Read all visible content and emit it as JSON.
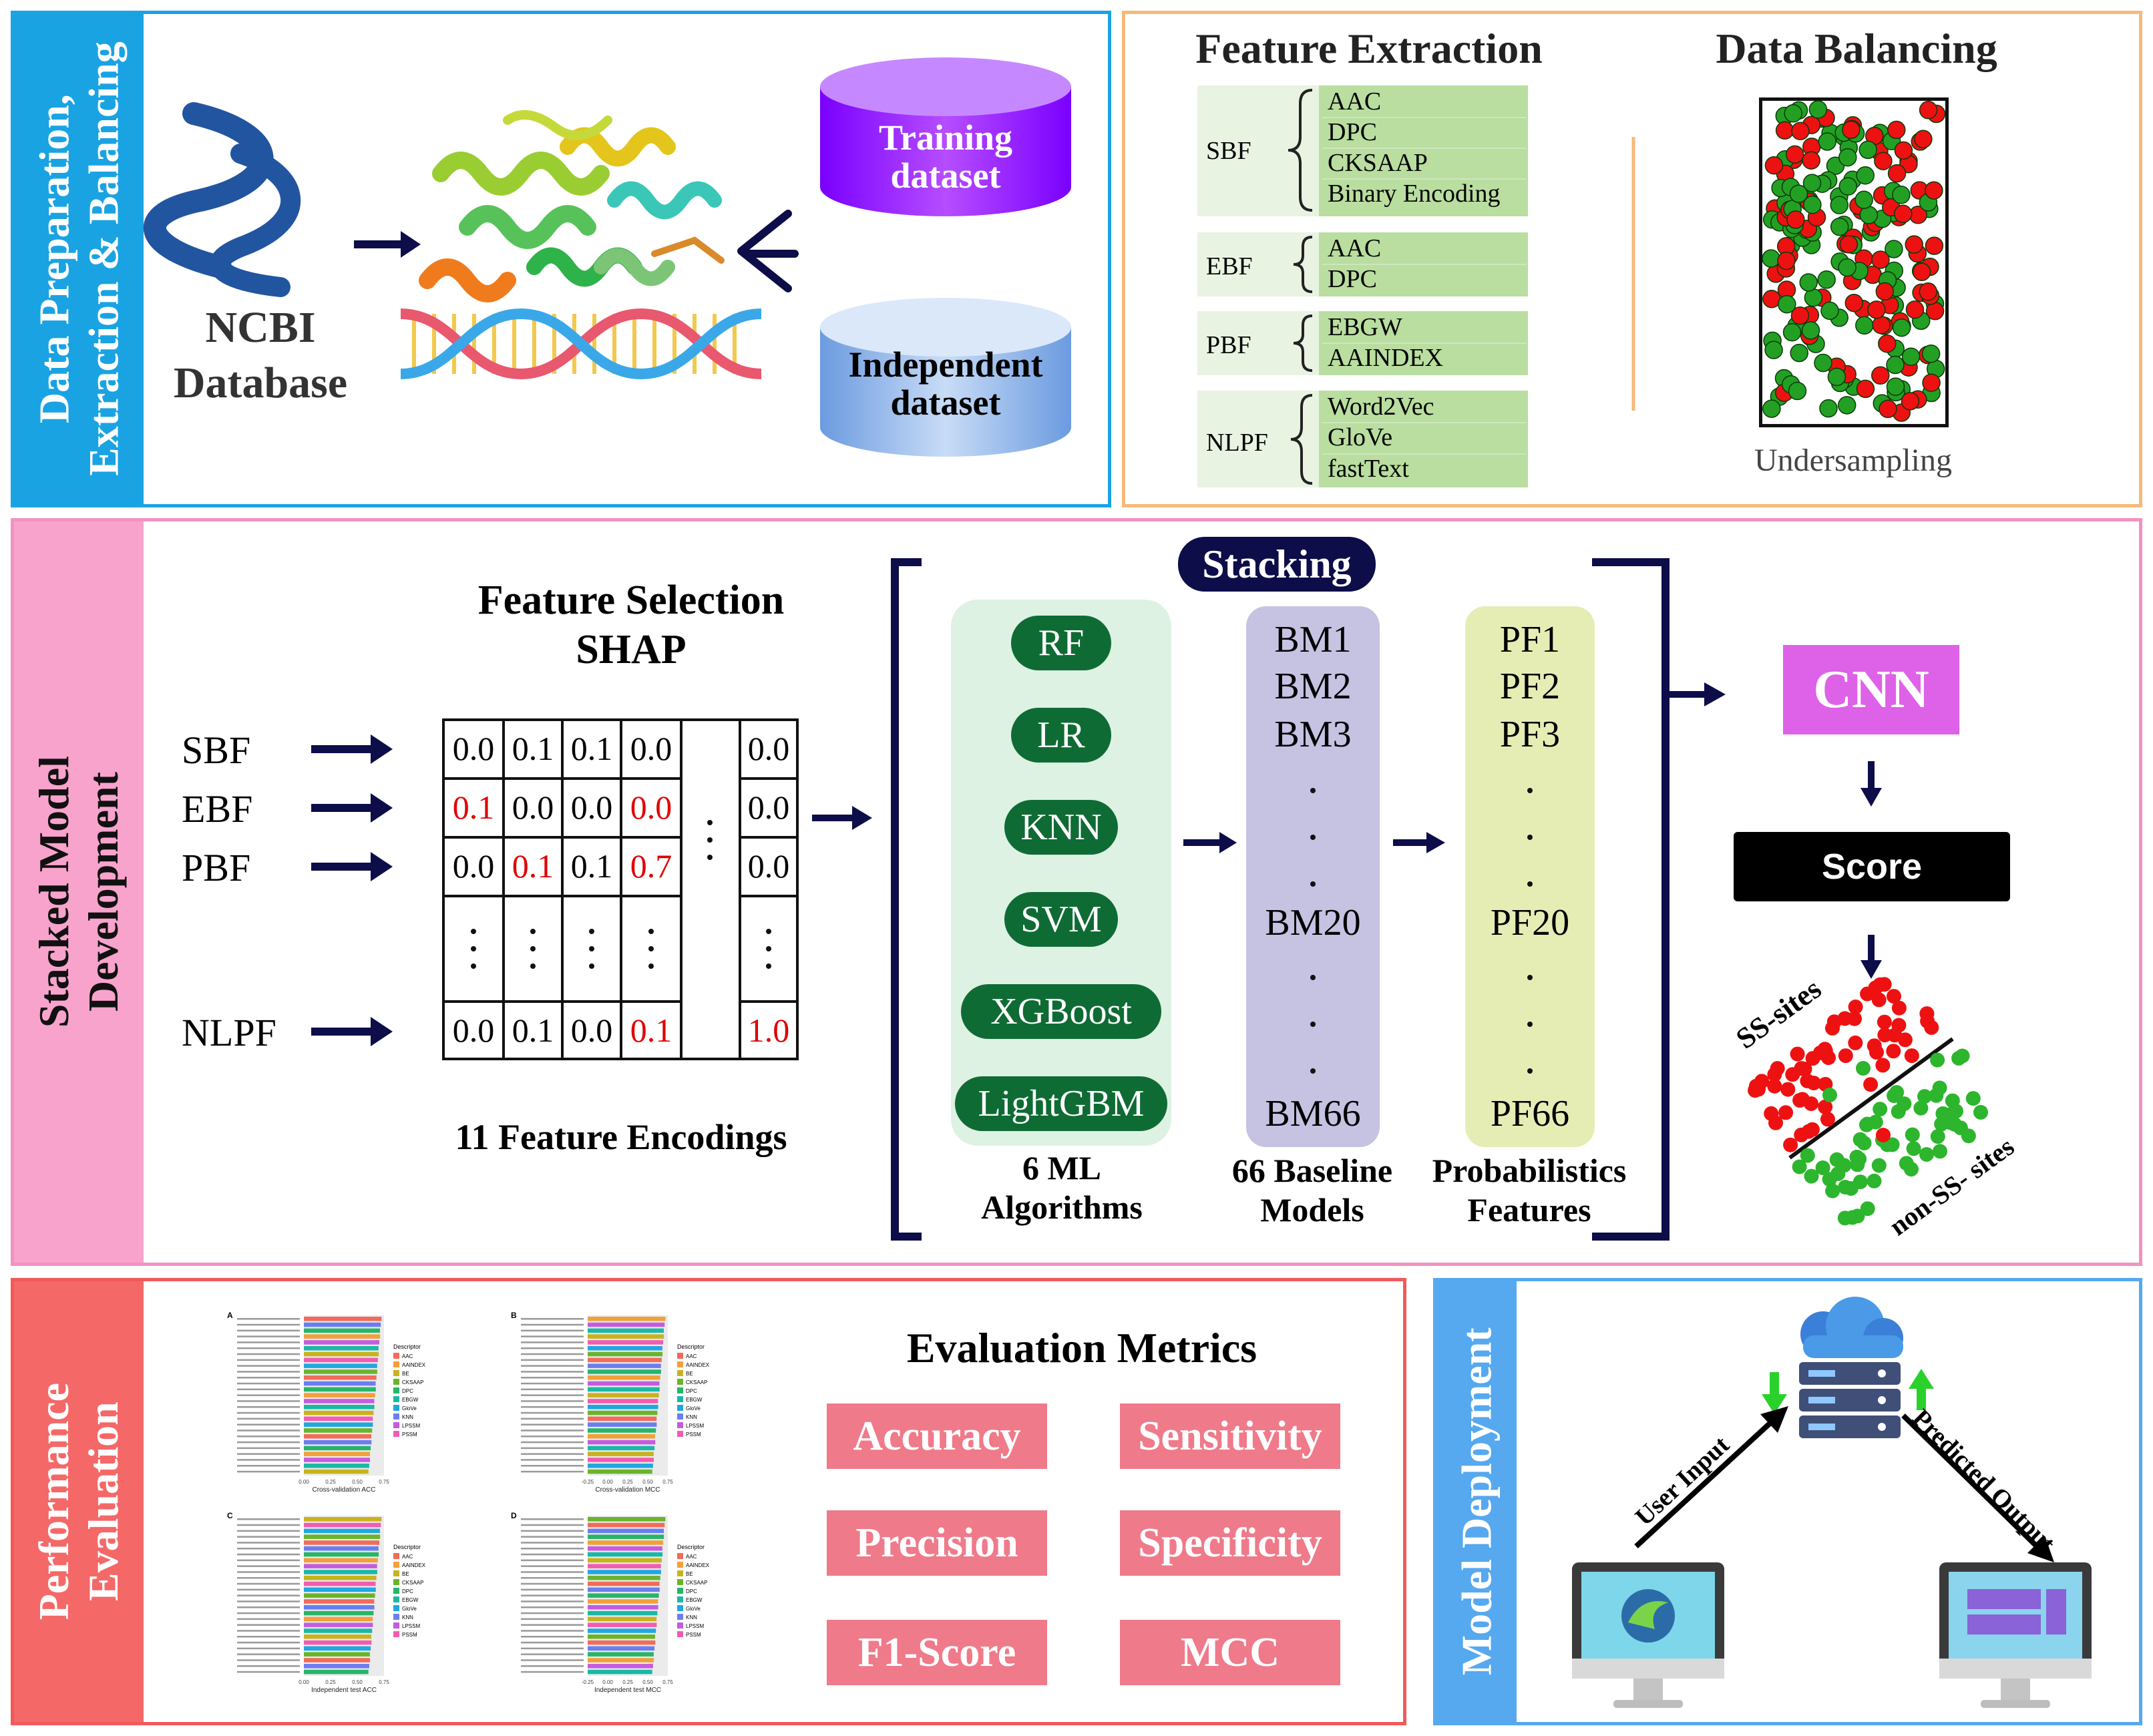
{
  "panel1": {
    "sidebar_line1": "Data Preparation,",
    "sidebar_line2": "Extraction & Balancing",
    "ncbi_line1": "NCBI",
    "ncbi_line2": "Database",
    "training_line1": "Training",
    "training_line2": "dataset",
    "independent_line1": "Independent",
    "independent_line2": "dataset"
  },
  "panel2": {
    "feature_extraction_title": "Feature Extraction",
    "data_balancing_title": "Data Balancing",
    "groups": [
      {
        "label": "SBF",
        "items": [
          "AAC",
          "DPC",
          "CKSAAP",
          "Binary Encoding"
        ]
      },
      {
        "label": "EBF",
        "items": [
          "AAC",
          "DPC"
        ]
      },
      {
        "label": "PBF",
        "items": [
          "EBGW",
          "AAINDEX"
        ]
      },
      {
        "label": "NLPF",
        "items": [
          "Word2Vec",
          "GloVe",
          "fastText"
        ]
      }
    ],
    "undersampling": "Undersampling"
  },
  "panel3": {
    "sidebar_line1": "Stacked Model",
    "sidebar_line2": "Development",
    "feature_selection_line1": "Feature Selection",
    "feature_selection_line2": "SHAP",
    "rows": [
      "SBF",
      "EBF",
      "PBF",
      "NLPF"
    ],
    "matrix": [
      [
        "0.0",
        "0.1",
        "0.1",
        "0.0",
        "0.0"
      ],
      [
        "0.1",
        "0.0",
        "0.0",
        "0.0",
        "0.0"
      ],
      [
        "0.0",
        "0.1",
        "0.1",
        "0.7",
        "0.0"
      ],
      [
        "0.0",
        "0.1",
        "0.0",
        "0.1",
        "1.0"
      ]
    ],
    "encodings_caption": "11 Feature Encodings",
    "stacking": "Stacking",
    "algorithms": [
      "RF",
      "LR",
      "KNN",
      "SVM",
      "XGBoost",
      "LightGBM"
    ],
    "algorithms_caption_line1": "6 ML",
    "algorithms_caption_line2": "Algorithms",
    "baseline": [
      "BM1",
      "BM2",
      "BM3",
      "BM20",
      "BM66"
    ],
    "baseline_caption_line1": "66 Baseline",
    "baseline_caption_line2": "Models",
    "prob": [
      "PF1",
      "PF2",
      "PF3",
      "PF20",
      "PF66"
    ],
    "prob_caption_line1": "Probabilistics",
    "prob_caption_line2": "Features",
    "cnn": "CNN",
    "score": "Score",
    "ss_sites": "SS-sites",
    "non_ss_sites": "non-SS- sites",
    "colors": {
      "red": "#e00000",
      "green": "#1e9a1e",
      "navy": "#0d0d4a"
    }
  },
  "panel4": {
    "sidebar_line1": "Performance",
    "sidebar_line2": "Evaluation",
    "metrics_title": "Evaluation Metrics",
    "metrics": [
      "Accuracy",
      "Sensitivity",
      "Precision",
      "Specificity",
      "F1-Score",
      "MCC"
    ],
    "mini_charts": [
      {
        "letter": "A",
        "xlabel": "Cross-validation ACC",
        "ticks": [
          "0.00",
          "0.25",
          "0.50",
          "0.75"
        ]
      },
      {
        "letter": "B",
        "xlabel": "Cross-validation MCC",
        "ticks": [
          "-0.25",
          "0.00",
          "0.25",
          "0.50",
          "0.75"
        ]
      },
      {
        "letter": "C",
        "xlabel": "Independent test ACC",
        "ticks": [
          "0.00",
          "0.25",
          "0.50",
          "0.75"
        ]
      },
      {
        "letter": "D",
        "xlabel": "Independent test MCC",
        "ticks": [
          "-0.25",
          "0.00",
          "0.25",
          "0.50",
          "0.75"
        ]
      }
    ],
    "legend_title": "Descriptor",
    "legend_items": [
      "AAC",
      "AAINDEX",
      "BE",
      "CKSAAP",
      "DPC",
      "EBGW",
      "GloVe",
      "KNN",
      "LPSSM",
      "PSSM"
    ]
  },
  "panel5": {
    "sidebar": "Model Deployment",
    "user_input": "User Input",
    "predicted_output": "Predicted Output"
  }
}
